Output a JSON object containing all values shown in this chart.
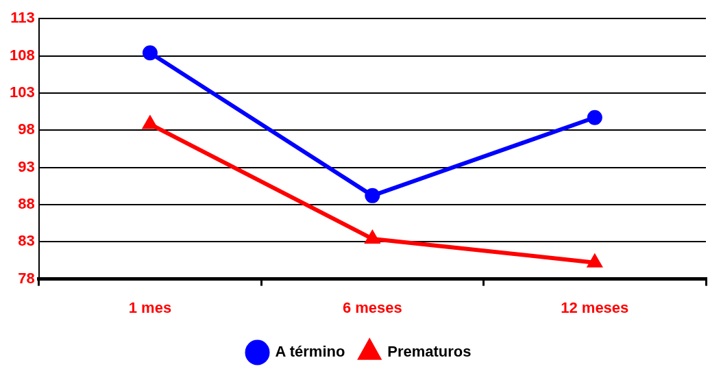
{
  "chart_data": {
    "type": "line",
    "categories": [
      "1 mes",
      "6 meses",
      "12 meses"
    ],
    "series": [
      {
        "name": "A término",
        "color": "#0000ff",
        "marker": "circle",
        "values": [
          108.4,
          89.2,
          99.7
        ]
      },
      {
        "name": "Prematuros",
        "color": "#ff0000",
        "marker": "triangle",
        "values": [
          98.8,
          83.4,
          80.2
        ]
      }
    ],
    "ylim": [
      78,
      113
    ],
    "yticks": [
      78,
      83,
      88,
      93,
      98,
      103,
      108,
      113
    ],
    "grid": "y",
    "legend": "bottom",
    "line_style": "solid"
  }
}
